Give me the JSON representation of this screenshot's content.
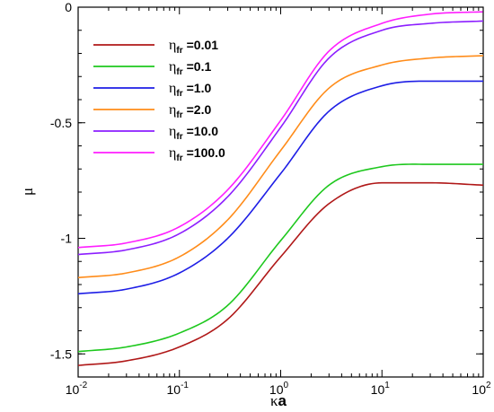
{
  "chart_data": {
    "type": "line",
    "xlabel_symbol": "κ",
    "xlabel_var": "a",
    "ylabel": "μ",
    "xscale": "log",
    "xlim": [
      0.01,
      100
    ],
    "ylim": [
      -1.6,
      0
    ],
    "xtick_values": [
      0.01,
      0.1,
      1,
      10,
      100
    ],
    "xtick_base": "10",
    "xtick_exponents": [
      "-2",
      "-1",
      "0",
      "1",
      "2"
    ],
    "ytick_values": [
      0,
      -0.5,
      -1,
      -1.5
    ],
    "ytick_labels": [
      "0",
      "-0.5",
      "-1",
      "-1.5"
    ],
    "legend_position": "top-left",
    "legend_symbol": "η",
    "legend_subscript": "fr",
    "grid": false,
    "series": [
      {
        "name": "=0.01",
        "color": "#b01818",
        "x": [
          0.01,
          0.03,
          0.1,
          0.3,
          1,
          3,
          10,
          30,
          100
        ],
        "y": [
          -1.55,
          -1.53,
          -1.47,
          -1.35,
          -1.08,
          -0.85,
          -0.76,
          -0.76,
          -0.77
        ]
      },
      {
        "name": "=0.1",
        "color": "#1ec81e",
        "x": [
          0.01,
          0.03,
          0.1,
          0.3,
          1,
          3,
          10,
          30,
          100
        ],
        "y": [
          -1.49,
          -1.47,
          -1.41,
          -1.29,
          -1.01,
          -0.77,
          -0.69,
          -0.68,
          -0.68
        ]
      },
      {
        "name": "=1.0",
        "color": "#1e1ee6",
        "x": [
          0.01,
          0.03,
          0.1,
          0.3,
          1,
          3,
          10,
          30,
          100
        ],
        "y": [
          -1.24,
          -1.22,
          -1.15,
          -1.0,
          -0.72,
          -0.45,
          -0.34,
          -0.32,
          -0.32
        ]
      },
      {
        "name": "=2.0",
        "color": "#ff8c1a",
        "x": [
          0.01,
          0.03,
          0.1,
          0.3,
          1,
          3,
          10,
          30,
          100
        ],
        "y": [
          -1.17,
          -1.15,
          -1.08,
          -0.92,
          -0.62,
          -0.35,
          -0.25,
          -0.22,
          -0.21
        ]
      },
      {
        "name": "=10.0",
        "color": "#8c1eff",
        "x": [
          0.01,
          0.03,
          0.1,
          0.3,
          1,
          3,
          10,
          30,
          100
        ],
        "y": [
          -1.07,
          -1.05,
          -0.98,
          -0.82,
          -0.52,
          -0.22,
          -0.1,
          -0.07,
          -0.06
        ]
      },
      {
        "name": "=100.0",
        "color": "#ff1eff",
        "x": [
          0.01,
          0.03,
          0.1,
          0.3,
          1,
          3,
          10,
          30,
          100
        ],
        "y": [
          -1.04,
          -1.02,
          -0.95,
          -0.79,
          -0.49,
          -0.19,
          -0.07,
          -0.03,
          -0.02
        ]
      }
    ]
  }
}
